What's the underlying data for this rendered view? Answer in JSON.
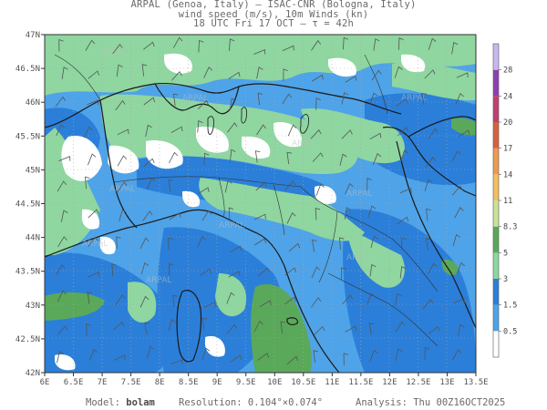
{
  "header": {
    "line1": "ARPAL (Genoa, Italy)  —  ISAC-CNR (Bologna, Italy)",
    "line2": "wind speed (m/s), 10m Winds (kn)",
    "line3": "18 UTC Fri 17 OCT  —  τ = 42h"
  },
  "footer": {
    "model_label": "Model:",
    "model_value": "bolam",
    "resolution_label": "Resolution:",
    "resolution_value": "0.104°×0.074°",
    "analysis_label": "Analysis:",
    "analysis_value": "Thu  00Z16OCT2025"
  },
  "map": {
    "lon_range": [
      6,
      13.5
    ],
    "lat_range": [
      42,
      47
    ],
    "lon_ticks": [
      "6E",
      "6.5E",
      "7E",
      "7.5E",
      "8E",
      "8.5E",
      "9E",
      "9.5E",
      "10E",
      "10.5E",
      "11E",
      "11.5E",
      "12E",
      "12.5E",
      "13E",
      "13.5E"
    ],
    "lat_ticks": [
      "47N",
      "46.5N",
      "46N",
      "45.5N",
      "45N",
      "44.5N",
      "44N",
      "43.5N",
      "43N",
      "42.5N",
      "42N"
    ],
    "watermark": "ARPAL"
  },
  "colorbar": {
    "labels": [
      "0.5",
      "1.5",
      "3",
      "5",
      "8.3",
      "11",
      "14",
      "17",
      "20",
      "24",
      "28"
    ],
    "colors": [
      "#ffffff",
      "#4fa3e8",
      "#2b7fd9",
      "#8fd6a0",
      "#5aa85a",
      "#c9e39a",
      "#f0c060",
      "#ee9a50",
      "#d86040",
      "#c04070",
      "#8e3fb0",
      "#c8b8f0"
    ]
  },
  "palette": {
    "calm": "#ffffff",
    "light_blue": "#4fa3e8",
    "blue": "#2b7fd9",
    "light_green": "#8fd6a0",
    "green": "#5aa85a",
    "border": "#1a1a1a",
    "barb": "#555555"
  }
}
